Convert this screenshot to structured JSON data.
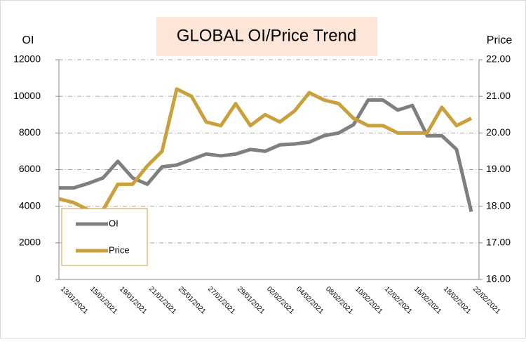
{
  "chart_data": {
    "type": "line",
    "title": "GLOBAL OI/Price Trend",
    "y_label": "OI",
    "y2_label": "Price",
    "categories": [
      "13/01/2021",
      null,
      "15/01/2021",
      null,
      "19/01/2021",
      null,
      "21/01/2021",
      null,
      "25/01/2021",
      null,
      "27/01/2021",
      null,
      "29/01/2021",
      null,
      "02/02/2021",
      null,
      "04/02/2021",
      null,
      "08/02/2021",
      null,
      "10/02/2021",
      null,
      "12/02/2021",
      null,
      "16/02/2021",
      null,
      "18/02/2021",
      null,
      "22/02/2021"
    ],
    "series": [
      {
        "name": "OI",
        "color": "#7f7f7f",
        "axis": "y",
        "values": [
          5000,
          5000,
          5250,
          5550,
          6450,
          5550,
          5200,
          6150,
          6250,
          6550,
          6850,
          6750,
          6850,
          7100,
          7000,
          7350,
          7400,
          7500,
          7850,
          8000,
          8450,
          9800,
          9800,
          9250,
          9500,
          7850,
          7850,
          7100,
          3700
        ]
      },
      {
        "name": "Price",
        "color": "#c9a03c",
        "axis": "y2",
        "values": [
          18.2,
          18.1,
          17.9,
          17.9,
          18.6,
          18.6,
          19.1,
          19.5,
          21.2,
          21.0,
          20.3,
          20.2,
          20.8,
          20.2,
          20.5,
          20.3,
          20.6,
          21.1,
          20.9,
          20.8,
          20.4,
          20.2,
          20.2,
          20.0,
          20.0,
          20.0,
          20.7,
          20.2,
          20.4
        ]
      }
    ],
    "ylim": [
      0,
      12000
    ],
    "yticks": [
      0,
      2000,
      4000,
      6000,
      8000,
      10000,
      12000
    ],
    "y2lim": [
      16,
      22
    ],
    "y2ticks": [
      {
        "value": 16,
        "label": "16.00"
      },
      {
        "value": 17,
        "label": "17.00"
      },
      {
        "value": 18,
        "label": "18.00"
      },
      {
        "value": 19,
        "label": "19.00"
      },
      {
        "value": 20,
        "label": "20.00"
      },
      {
        "value": 21,
        "label": "21.00"
      },
      {
        "value": 22,
        "label": "22.00"
      }
    ],
    "grid": true,
    "legend": "lower left"
  }
}
